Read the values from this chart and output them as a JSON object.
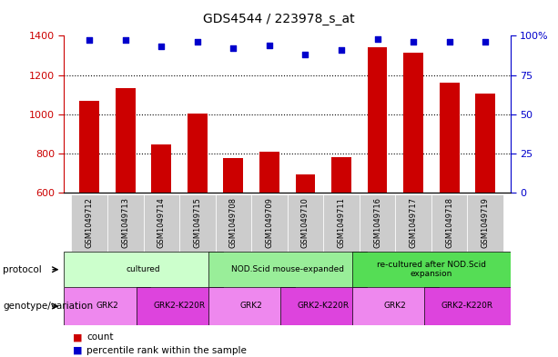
{
  "title": "GDS4544 / 223978_s_at",
  "samples": [
    "GSM1049712",
    "GSM1049713",
    "GSM1049714",
    "GSM1049715",
    "GSM1049708",
    "GSM1049709",
    "GSM1049710",
    "GSM1049711",
    "GSM1049716",
    "GSM1049717",
    "GSM1049718",
    "GSM1049719"
  ],
  "counts": [
    1070,
    1135,
    845,
    1005,
    775,
    810,
    695,
    780,
    1340,
    1315,
    1160,
    1105
  ],
  "percentiles": [
    97,
    97,
    93,
    96,
    92,
    94,
    88,
    91,
    98,
    96,
    96,
    96
  ],
  "ylim_left": [
    600,
    1400
  ],
  "ylim_right": [
    0,
    100
  ],
  "yticks_left": [
    600,
    800,
    1000,
    1200,
    1400
  ],
  "yticks_right": [
    0,
    25,
    50,
    75,
    100
  ],
  "bar_color": "#cc0000",
  "dot_color": "#0000cc",
  "dotted_lines": [
    800,
    1000,
    1200
  ],
  "protocol_groups": [
    {
      "label": "cultured",
      "start": 0,
      "end": 4,
      "color": "#ccffcc"
    },
    {
      "label": "NOD.Scid mouse-expanded",
      "start": 4,
      "end": 8,
      "color": "#99ee99"
    },
    {
      "label": "re-cultured after NOD.Scid\nexpansion",
      "start": 8,
      "end": 12,
      "color": "#55dd55"
    }
  ],
  "genotype_groups": [
    {
      "label": "GRK2",
      "start": 0,
      "end": 2,
      "color": "#ee88ee"
    },
    {
      "label": "GRK2-K220R",
      "start": 2,
      "end": 4,
      "color": "#dd44dd"
    },
    {
      "label": "GRK2",
      "start": 4,
      "end": 6,
      "color": "#ee88ee"
    },
    {
      "label": "GRK2-K220R",
      "start": 6,
      "end": 8,
      "color": "#dd44dd"
    },
    {
      "label": "GRK2",
      "start": 8,
      "end": 10,
      "color": "#ee88ee"
    },
    {
      "label": "GRK2-K220R",
      "start": 10,
      "end": 12,
      "color": "#dd44dd"
    }
  ],
  "legend_items": [
    {
      "label": "count",
      "color": "#cc0000"
    },
    {
      "label": "percentile rank within the sample",
      "color": "#0000cc"
    }
  ],
  "protocol_label": "protocol",
  "genotype_label": "genotype/variation",
  "bar_width": 0.55,
  "xtick_bg": "#cccccc",
  "background_color": "#ffffff"
}
